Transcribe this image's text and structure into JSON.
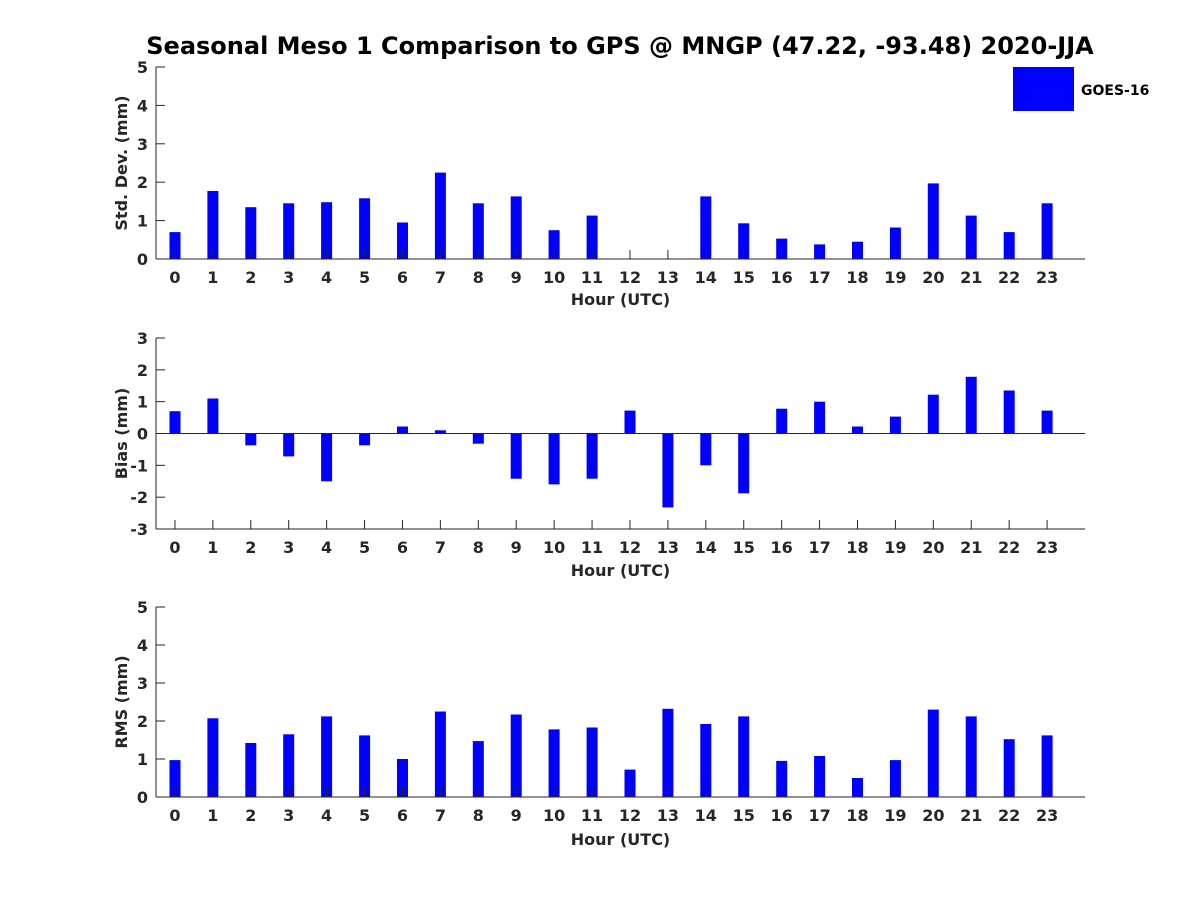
{
  "title": "Seasonal Meso 1 Comparison to GPS @ MNGP (47.22, -93.48) 2020-JJA",
  "legend": {
    "label": "GOES-16",
    "color": "#0000ff"
  },
  "chart_data": [
    {
      "type": "bar",
      "xlabel": "Hour (UTC)",
      "ylabel": "Std. Dev. (mm)",
      "ylim": [
        0,
        5
      ],
      "yticks": [
        "0",
        "1",
        "2",
        "3",
        "4",
        "5"
      ],
      "categories": [
        "0",
        "1",
        "2",
        "3",
        "4",
        "5",
        "6",
        "7",
        "8",
        "9",
        "10",
        "11",
        "12",
        "13",
        "14",
        "15",
        "16",
        "17",
        "18",
        "19",
        "20",
        "21",
        "22",
        "23"
      ],
      "series": [
        {
          "name": "GOES-16",
          "values": [
            0.7,
            1.77,
            1.35,
            1.45,
            1.48,
            1.58,
            0.95,
            2.25,
            1.45,
            1.63,
            0.75,
            1.13,
            0.0,
            0.0,
            1.63,
            0.93,
            0.53,
            0.38,
            0.45,
            0.82,
            1.97,
            1.13,
            0.7,
            1.45
          ]
        }
      ]
    },
    {
      "type": "bar",
      "xlabel": "Hour (UTC)",
      "ylabel": "Bias (mm)",
      "ylim": [
        -3,
        3
      ],
      "yticks": [
        "-3",
        "-2",
        "-1",
        "0",
        "1",
        "2",
        "3"
      ],
      "categories": [
        "0",
        "1",
        "2",
        "3",
        "4",
        "5",
        "6",
        "7",
        "8",
        "9",
        "10",
        "11",
        "12",
        "13",
        "14",
        "15",
        "16",
        "17",
        "18",
        "19",
        "20",
        "21",
        "22",
        "23"
      ],
      "series": [
        {
          "name": "GOES-16",
          "values": [
            0.7,
            1.1,
            -0.37,
            -0.72,
            -1.5,
            -0.37,
            0.22,
            0.1,
            -0.32,
            -1.42,
            -1.6,
            -1.42,
            0.72,
            -2.32,
            -1.0,
            -1.88,
            0.78,
            1.0,
            0.22,
            0.53,
            1.22,
            1.78,
            1.35,
            0.72
          ]
        }
      ]
    },
    {
      "type": "bar",
      "xlabel": "Hour (UTC)",
      "ylabel": "RMS (mm)",
      "ylim": [
        0,
        5
      ],
      "yticks": [
        "0",
        "1",
        "2",
        "3",
        "4",
        "5"
      ],
      "categories": [
        "0",
        "1",
        "2",
        "3",
        "4",
        "5",
        "6",
        "7",
        "8",
        "9",
        "10",
        "11",
        "12",
        "13",
        "14",
        "15",
        "16",
        "17",
        "18",
        "19",
        "20",
        "21",
        "22",
        "23"
      ],
      "series": [
        {
          "name": "GOES-16",
          "values": [
            0.97,
            2.07,
            1.42,
            1.65,
            2.12,
            1.62,
            1.0,
            2.25,
            1.47,
            2.17,
            1.78,
            1.83,
            0.72,
            2.32,
            1.92,
            2.12,
            0.95,
            1.08,
            0.5,
            0.97,
            2.3,
            2.12,
            1.52,
            1.62
          ]
        }
      ]
    }
  ]
}
